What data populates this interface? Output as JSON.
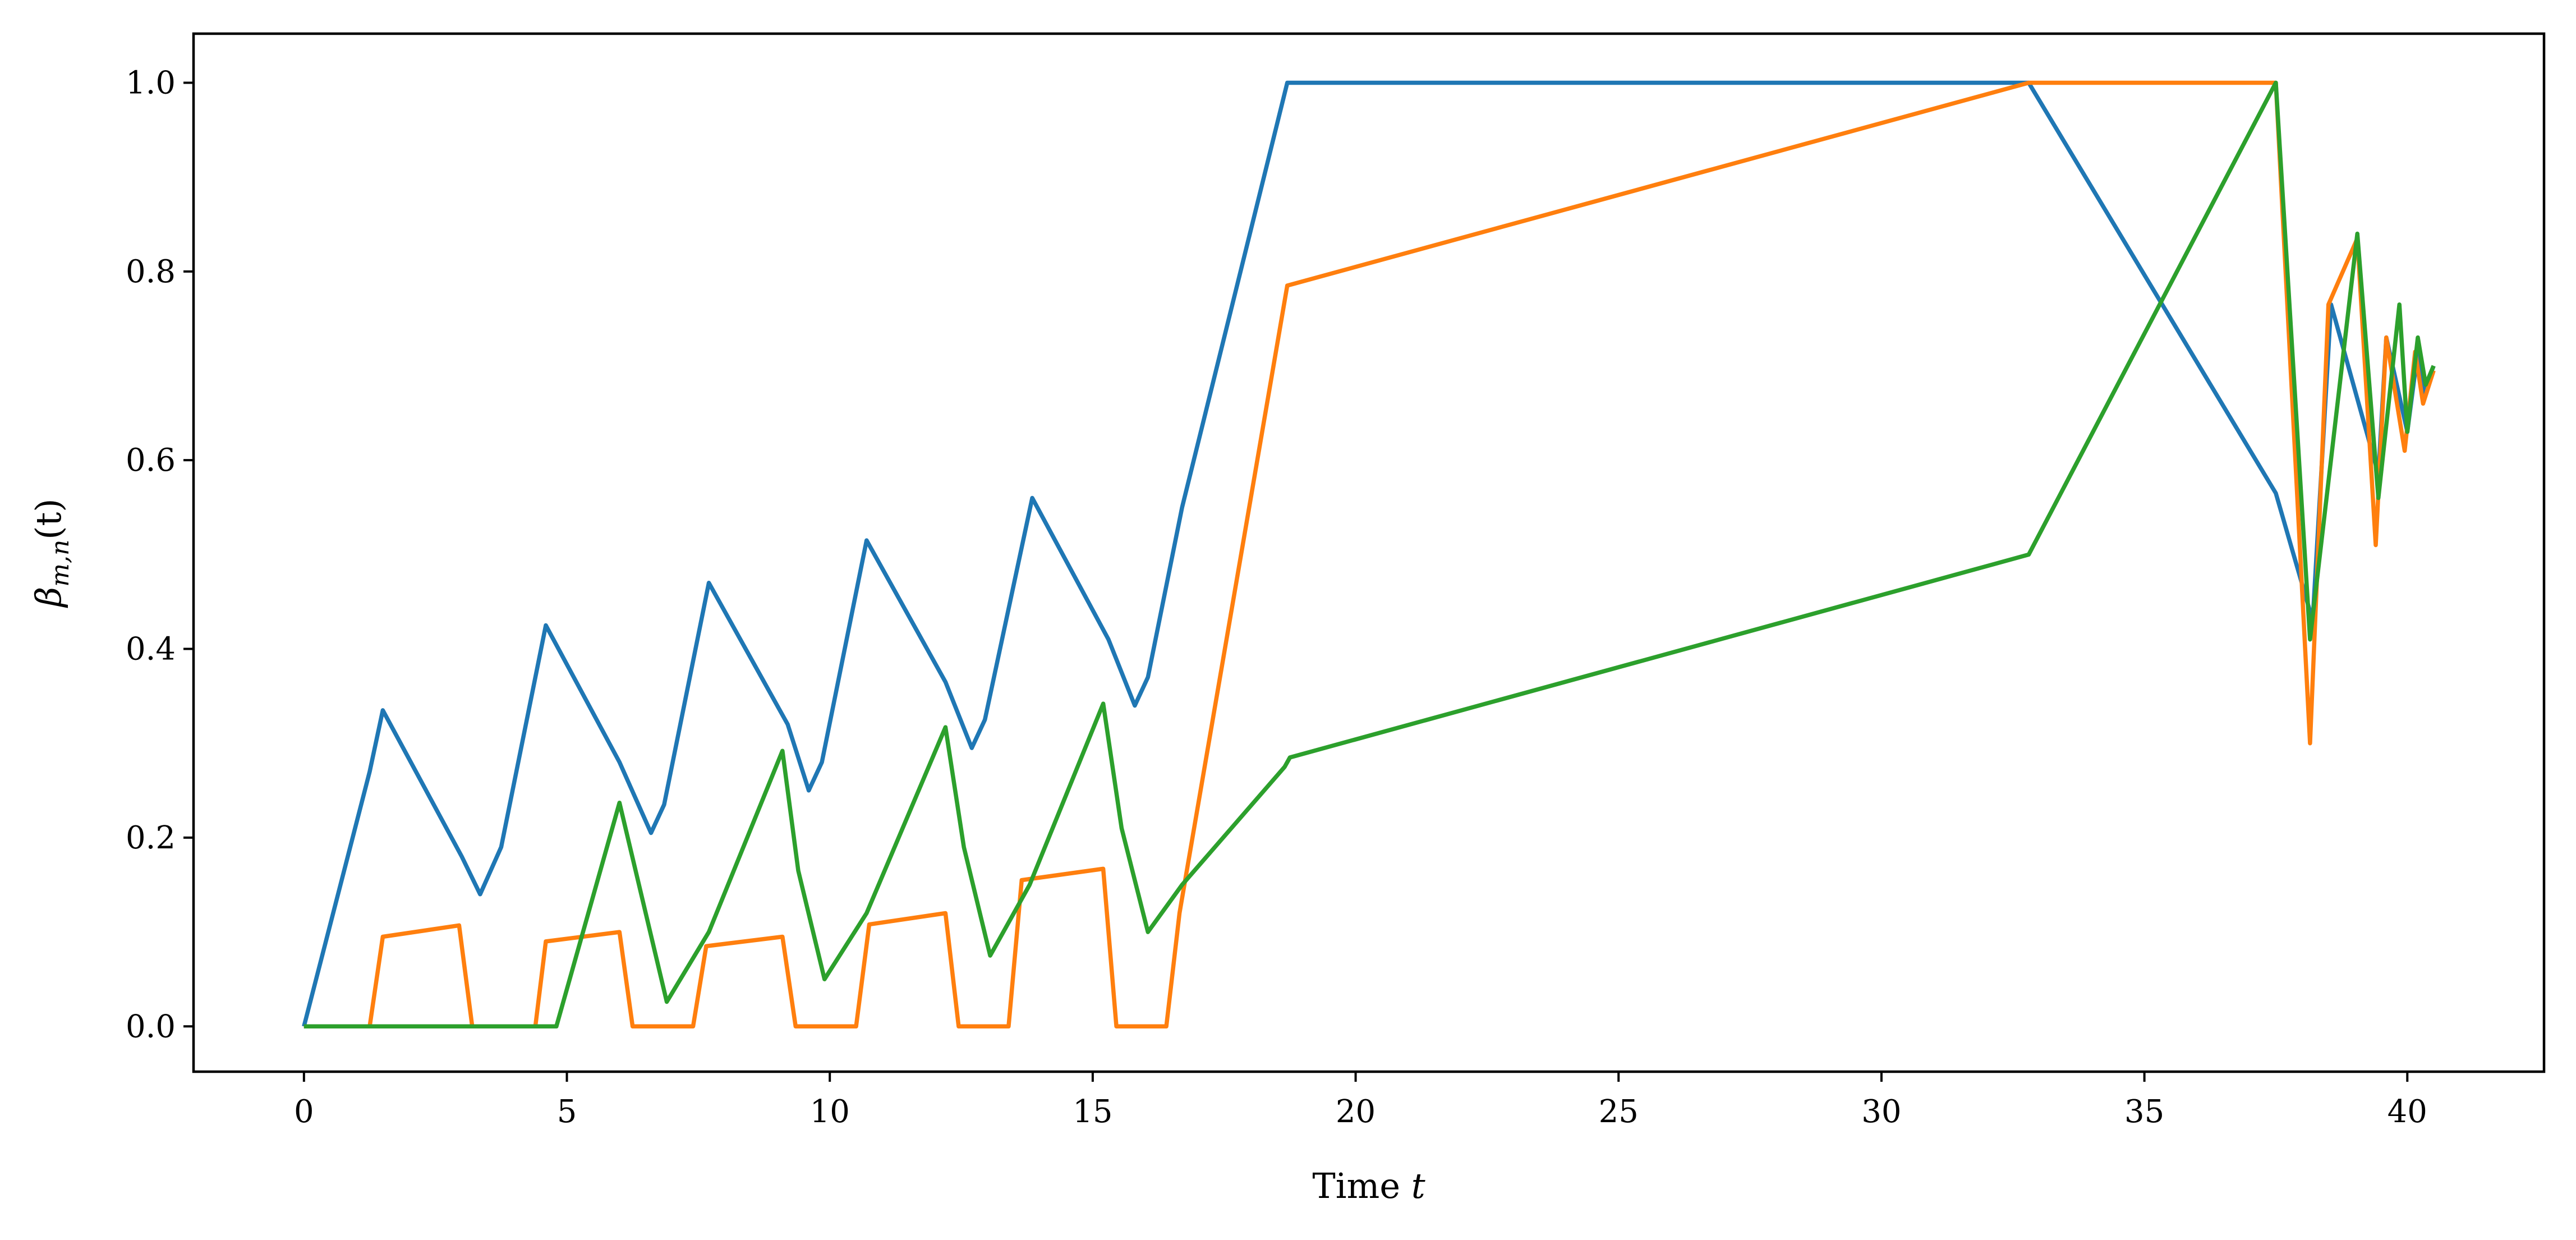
{
  "chart_data": {
    "type": "line",
    "title": "",
    "xlabel_text": "Time ",
    "xlabel_var": "t",
    "ylabel_parts": {
      "symbol": "β",
      "subscript": "m,n",
      "suffix": "(t)"
    },
    "xlim": [
      -2.1,
      42.6
    ],
    "ylim": [
      -0.048,
      1.052
    ],
    "xticks": [
      0,
      5,
      10,
      15,
      20,
      25,
      30,
      35,
      40
    ],
    "xtick_labels": [
      "0",
      "5",
      "10",
      "15",
      "20",
      "25",
      "30",
      "35",
      "40"
    ],
    "yticks": [
      0.0,
      0.2,
      0.4,
      0.6,
      0.8,
      1.0
    ],
    "ytick_labels": [
      "0.0",
      "0.2",
      "0.4",
      "0.6",
      "0.8",
      "1.0"
    ],
    "grid": false,
    "legend": "none",
    "series": [
      {
        "color": "#1f77b4",
        "x": [
          0,
          1.25,
          1.5,
          3.0,
          3.35,
          3.75,
          4.6,
          6.0,
          6.6,
          6.85,
          7.7,
          9.2,
          9.6,
          9.85,
          10.7,
          12.2,
          12.7,
          12.95,
          13.85,
          15.3,
          15.8,
          16.05,
          16.7,
          18.7,
          32.8,
          37.5,
          38.2,
          38.55,
          39.45,
          39.6,
          40.0,
          40.2,
          40.3,
          40.5
        ],
        "y": [
          0,
          0.27,
          0.335,
          0.18,
          0.14,
          0.19,
          0.425,
          0.28,
          0.205,
          0.235,
          0.47,
          0.32,
          0.25,
          0.28,
          0.515,
          0.365,
          0.295,
          0.325,
          0.56,
          0.41,
          0.34,
          0.37,
          0.55,
          1.0,
          1.0,
          0.565,
          0.43,
          0.765,
          0.585,
          0.73,
          0.63,
          0.715,
          0.67,
          0.7
        ]
      },
      {
        "color": "#ff7f0e",
        "x": [
          0,
          1.25,
          1.5,
          2.95,
          3.2,
          4.4,
          4.6,
          6.0,
          6.25,
          7.4,
          7.65,
          9.1,
          9.35,
          10.5,
          10.75,
          12.2,
          12.45,
          13.4,
          13.65,
          15.2,
          15.45,
          16.4,
          16.65,
          18.7,
          32.8,
          37.5,
          38.15,
          38.5,
          39.05,
          39.4,
          39.6,
          39.95,
          40.15,
          40.3,
          40.5
        ],
        "y": [
          0,
          0,
          0.095,
          0.107,
          0,
          0,
          0.09,
          0.1,
          0,
          0,
          0.085,
          0.095,
          0,
          0,
          0.108,
          0.12,
          0,
          0,
          0.155,
          0.167,
          0,
          0,
          0.12,
          0.785,
          1.0,
          1.0,
          0.3,
          0.765,
          0.835,
          0.51,
          0.73,
          0.61,
          0.715,
          0.66,
          0.695
        ]
      },
      {
        "color": "#2ca02c",
        "x": [
          0,
          4.8,
          6.0,
          6.9,
          7.7,
          9.1,
          9.4,
          9.9,
          10.7,
          12.2,
          12.55,
          13.05,
          13.8,
          15.2,
          15.55,
          16.05,
          16.7,
          18.65,
          18.75,
          32.8,
          37.5,
          38.15,
          39.05,
          39.45,
          39.85,
          40.0,
          40.2,
          40.35,
          40.5
        ],
        "y": [
          0,
          0,
          0.237,
          0.026,
          0.1,
          0.292,
          0.165,
          0.05,
          0.12,
          0.317,
          0.19,
          0.075,
          0.15,
          0.342,
          0.21,
          0.1,
          0.15,
          0.275,
          0.285,
          0.5,
          1.0,
          0.41,
          0.84,
          0.56,
          0.765,
          0.63,
          0.73,
          0.68,
          0.7
        ]
      }
    ]
  }
}
